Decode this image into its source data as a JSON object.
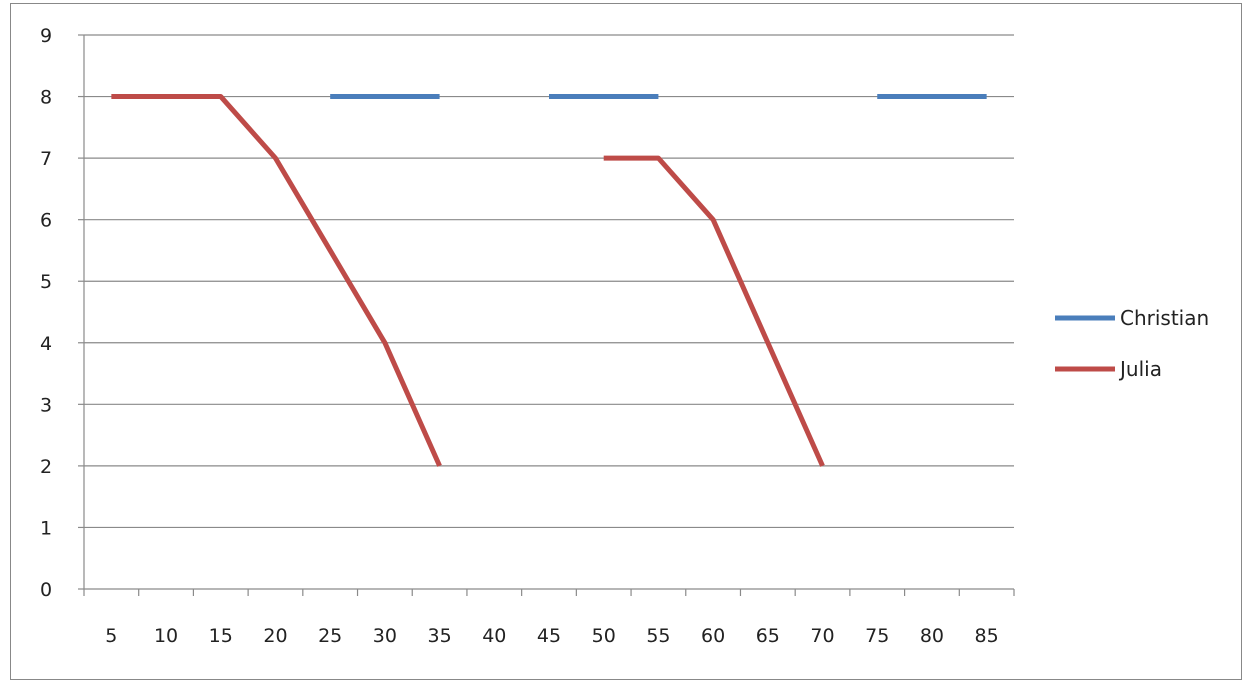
{
  "chart_data": {
    "type": "line",
    "title": "",
    "xlabel": "",
    "ylabel": "",
    "categories": [
      "5",
      "10",
      "15",
      "20",
      "25",
      "30",
      "35",
      "40",
      "45",
      "50",
      "55",
      "60",
      "65",
      "70",
      "75",
      "80",
      "85"
    ],
    "ylim": [
      0,
      9
    ],
    "yticks": [
      "0",
      "1",
      "2",
      "3",
      "4",
      "5",
      "6",
      "7",
      "8",
      "9"
    ],
    "grid": true,
    "legend_position": "right",
    "series": [
      {
        "name": "Christian",
        "color": "#4A7EBB",
        "values": [
          null,
          null,
          null,
          null,
          8,
          8,
          8,
          null,
          8,
          8,
          8,
          null,
          null,
          null,
          8,
          8,
          8
        ]
      },
      {
        "name": "Julia",
        "color": "#BE4B48",
        "values": [
          8,
          8,
          8,
          7,
          5.5,
          4,
          2,
          null,
          null,
          7,
          7,
          6,
          4,
          2,
          null,
          null,
          null
        ]
      }
    ]
  }
}
